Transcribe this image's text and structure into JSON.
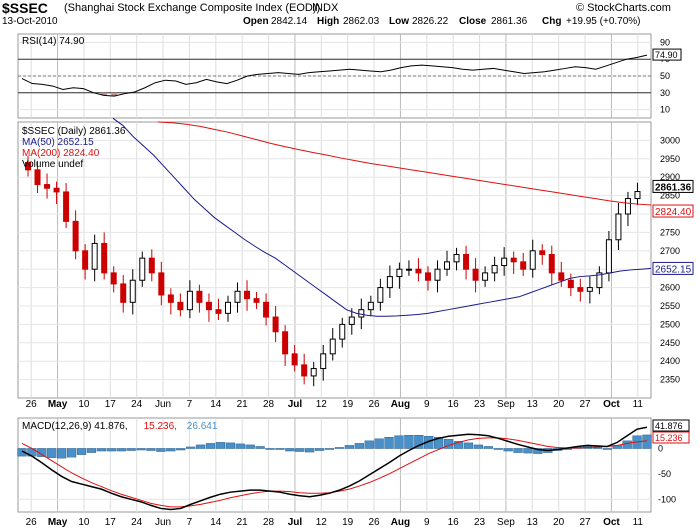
{
  "header": {
    "symbol": "$SSEC",
    "name": "(Shanghai Stock Exchange Composite Index (EOD))",
    "exchange": "INDX",
    "date": "13-Oct-2010",
    "open_label": "Open",
    "open": "2842.14",
    "high_label": "High",
    "high": "2862.03",
    "low_label": "Low",
    "low": "2826.22",
    "close_label": "Close",
    "close": "2861.36",
    "chg_label": "Chg",
    "chg": "+19.95 (+0.70%)",
    "watermark": "© StockCharts.com"
  },
  "colors": {
    "up": "#000000",
    "down": "#cc0000",
    "ma50": "#1a1a8c",
    "ma200": "#dd1111",
    "macd_hist": "#4a90c8",
    "signal": "#dd1111",
    "rsi_fill": "#c09090"
  },
  "chart_data": [
    {
      "type": "line",
      "title": "RSI(14) 74.90",
      "legend": "RSI(14) 74.90",
      "last_value_label": "74.90",
      "ylim": [
        0,
        100
      ],
      "yticks": [
        10,
        30,
        50,
        70,
        90
      ],
      "reference_lines": [
        30,
        50,
        70
      ],
      "series": [
        {
          "name": "RSI(14)",
          "values": [
            47,
            41,
            40,
            38,
            34,
            36,
            35,
            30,
            27,
            26,
            29,
            31,
            36,
            42,
            45,
            44,
            40,
            42,
            46,
            43,
            41,
            45,
            50,
            52,
            53,
            54,
            53,
            52,
            54,
            55,
            56,
            57,
            58,
            57,
            56,
            55,
            57,
            60,
            62,
            63,
            62,
            61,
            60,
            58,
            57,
            58,
            59,
            57,
            55,
            53,
            54,
            55,
            57,
            59,
            61,
            60,
            58,
            62,
            66,
            70,
            72,
            74.9
          ]
        }
      ]
    },
    {
      "type": "candlestick",
      "legend": [
        {
          "label": "$SSEC (Daily) 2861.36",
          "color": "#000000"
        },
        {
          "label": "MA(50) 2652.15",
          "color": "#1a1a8c"
        },
        {
          "label": "MA(200) 2824.40",
          "color": "#dd1111"
        },
        {
          "label": "Volume undef",
          "color": "#000000"
        }
      ],
      "ylim": [
        2300,
        3050
      ],
      "yticks": [
        2350,
        2400,
        2450,
        2500,
        2550,
        2600,
        2650,
        2700,
        2750,
        2800,
        2850,
        2900,
        2950,
        3000
      ],
      "price_tags": [
        {
          "label": "2861.36",
          "value": 2861.36
        },
        {
          "label": "2824.40",
          "value": 2824.4
        },
        {
          "label": "2652.15",
          "value": 2652.15
        }
      ],
      "x_labels": [
        "26",
        "May",
        "10",
        "17",
        "24",
        "Jun",
        "7",
        "14",
        "21",
        "28",
        "Jul",
        "12",
        "19",
        "26",
        "Aug",
        "9",
        "16",
        "23",
        "Sep",
        "13",
        "20",
        "27",
        "Oct",
        "11"
      ],
      "close": [
        2920,
        2880,
        2870,
        2860,
        2780,
        2700,
        2650,
        2720,
        2640,
        2610,
        2560,
        2620,
        2680,
        2640,
        2580,
        2560,
        2540,
        2590,
        2560,
        2540,
        2530,
        2560,
        2590,
        2570,
        2560,
        2520,
        2480,
        2420,
        2390,
        2360,
        2380,
        2420,
        2460,
        2500,
        2520,
        2540,
        2560,
        2600,
        2630,
        2650,
        2650,
        2640,
        2620,
        2650,
        2670,
        2690,
        2650,
        2620,
        2640,
        2660,
        2680,
        2670,
        2650,
        2700,
        2690,
        2640,
        2620,
        2600,
        2590,
        2600,
        2640,
        2730,
        2800,
        2842,
        2861
      ],
      "ma50": [
        3060,
        3040,
        3010,
        2985,
        2960,
        2930,
        2900,
        2870,
        2840,
        2815,
        2790,
        2770,
        2750,
        2730,
        2712,
        2695,
        2680,
        2660,
        2640,
        2620,
        2600,
        2580,
        2560,
        2540,
        2530,
        2525,
        2522,
        2522,
        2523,
        2525,
        2527,
        2530,
        2535,
        2540,
        2545,
        2550,
        2555,
        2560,
        2565,
        2570,
        2575,
        2585,
        2595,
        2605,
        2615,
        2625,
        2630,
        2632,
        2635,
        2640,
        2645,
        2648,
        2650,
        2652.15
      ],
      "ma200": [
        3050,
        3048,
        3044,
        3038,
        3030,
        3022,
        3012,
        3002,
        2992,
        2983,
        2975,
        2967,
        2960,
        2952,
        2945,
        2938,
        2932,
        2926,
        2920,
        2914,
        2908,
        2902,
        2896,
        2890,
        2884,
        2878,
        2872,
        2866,
        2860,
        2854,
        2848,
        2842,
        2836,
        2831,
        2827,
        2824.4
      ]
    },
    {
      "type": "line",
      "title": "MACD(12,26,9) 41.876, 15.236, 26.641",
      "legend": [
        {
          "label": "MACD(12,26,9) 41.876,",
          "color": "#000000"
        },
        {
          "label": "15.236,",
          "color": "#dd1111"
        },
        {
          "label": "26.641",
          "color": "#4a90c8"
        }
      ],
      "ylim": [
        -125,
        60
      ],
      "yticks": [
        -100,
        -50,
        0
      ],
      "last_value_labels": [
        "41.876",
        "15.236"
      ],
      "series": [
        {
          "name": "MACD(12,26,9)",
          "values": [
            -5,
            -15,
            -28,
            -42,
            -55,
            -65,
            -70,
            -75,
            -80,
            -88,
            -95,
            -100,
            -105,
            -112,
            -118,
            -120,
            -118,
            -110,
            -103,
            -96,
            -90,
            -86,
            -84,
            -82,
            -82,
            -84,
            -86,
            -90,
            -93,
            -95,
            -92,
            -88,
            -82,
            -74,
            -64,
            -52,
            -40,
            -28,
            -15,
            -4,
            6,
            14,
            20,
            24,
            26,
            28,
            27,
            25,
            20,
            14,
            8,
            3,
            -2,
            -4,
            -2,
            1,
            4,
            6,
            5,
            4,
            12,
            25,
            38,
            41.876
          ]
        },
        {
          "name": "signal",
          "values": [
            10,
            0,
            -12,
            -24,
            -36,
            -48,
            -58,
            -67,
            -75,
            -83,
            -90,
            -96,
            -102,
            -108,
            -112,
            -115,
            -115,
            -113,
            -110,
            -106,
            -102,
            -97,
            -93,
            -89,
            -86,
            -84,
            -84,
            -85,
            -87,
            -88,
            -88,
            -87,
            -84,
            -80,
            -74,
            -67,
            -59,
            -50,
            -40,
            -30,
            -20,
            -10,
            -2,
            6,
            12,
            17,
            20,
            21,
            21,
            19,
            16,
            12,
            8,
            4,
            2,
            1,
            1,
            2,
            3,
            4,
            6,
            10,
            13,
            15.236
          ]
        },
        {
          "name": "histogram",
          "values": [
            -15,
            -15,
            -16,
            -18,
            -19,
            -17,
            -12,
            -8,
            -5,
            -5,
            -5,
            -4,
            -3,
            -4,
            -6,
            -5,
            -3,
            3,
            7,
            10,
            12,
            11,
            9,
            7,
            4,
            0,
            -2,
            -5,
            -6,
            -7,
            -4,
            -1,
            2,
            6,
            10,
            15,
            19,
            22,
            25,
            26,
            26,
            24,
            22,
            18,
            14,
            11,
            7,
            4,
            -1,
            -5,
            -8,
            -9,
            -10,
            -8,
            -4,
            0,
            3,
            4,
            2,
            0,
            6,
            15,
            25,
            26.641
          ]
        }
      ]
    }
  ]
}
